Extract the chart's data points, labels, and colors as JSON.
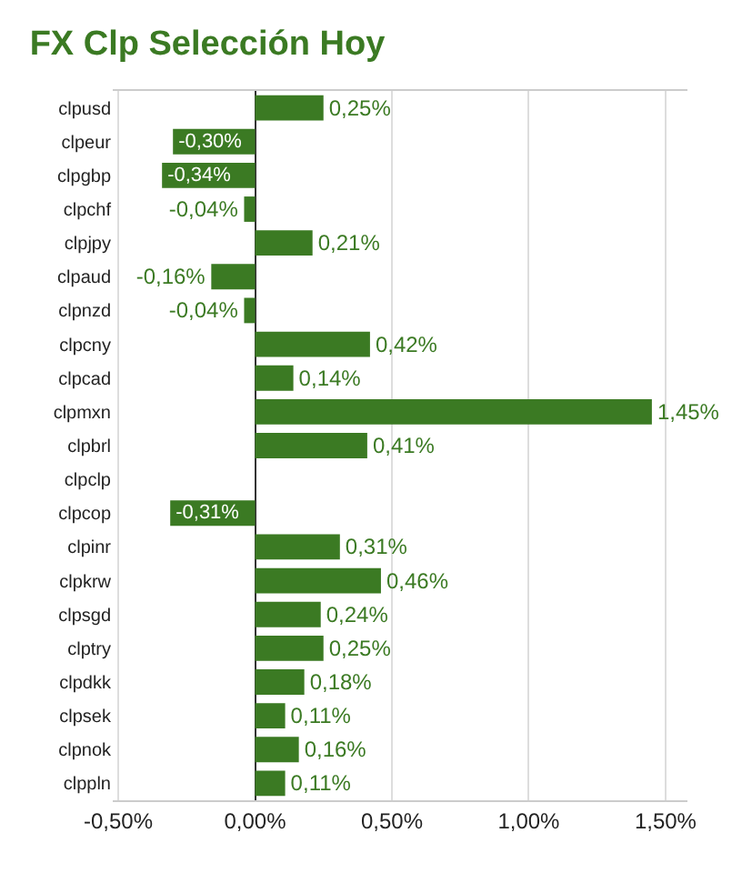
{
  "chart_data": {
    "type": "bar",
    "orientation": "horizontal",
    "title": "FX Clp Selección Hoy",
    "categories": [
      "clpusd",
      "clpeur",
      "clpgbp",
      "clpchf",
      "clpjpy",
      "clpaud",
      "clpnzd",
      "clpcny",
      "clpcad",
      "clpmxn",
      "clpbrl",
      "clpclp",
      "clpcop",
      "clpinr",
      "clpkrw",
      "clpsgd",
      "clptry",
      "clpdkk",
      "clpsek",
      "clpnok",
      "clppln"
    ],
    "values": [
      0.25,
      -0.3,
      -0.34,
      -0.04,
      0.21,
      -0.16,
      -0.04,
      0.42,
      0.14,
      1.45,
      0.41,
      null,
      -0.31,
      0.31,
      0.46,
      0.24,
      0.25,
      0.18,
      0.11,
      0.16,
      0.11
    ],
    "value_labels": [
      "0,25%",
      "-0,30%",
      "-0,34%",
      "-0,04%",
      "0,21%",
      "-0,16%",
      "-0,04%",
      "0,42%",
      "0,14%",
      "1,45%",
      "0,41%",
      null,
      "-0,31%",
      "0,31%",
      "0,46%",
      "0,24%",
      "0,25%",
      "0,18%",
      "0,11%",
      "0,16%",
      "0,11%"
    ],
    "color": "#3b7a23",
    "xlim": [
      -0.52,
      1.58
    ],
    "xticks": [
      {
        "value": -0.5,
        "label": "-0,50%"
      },
      {
        "value": 0,
        "label": "0,00%"
      },
      {
        "value": 0.5,
        "label": "0,50%"
      },
      {
        "value": 1,
        "label": "1,00%"
      },
      {
        "value": 1.5,
        "label": "1,50%"
      }
    ],
    "grid": "x",
    "legend": false
  }
}
